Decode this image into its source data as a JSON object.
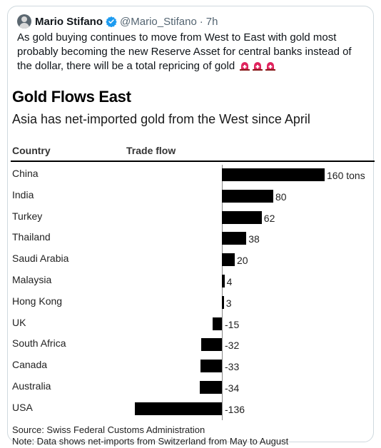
{
  "tweet": {
    "author": "Mario Stifano",
    "handle": "@Mario_Stifano",
    "separator": "·",
    "time": "7h",
    "text": "As gold buying continues to move from West to East with gold most probably becoming the new Reserve Asset for central banks instead of the dollar, there will be a total repricing of gold",
    "emoji_icons": [
      "police-siren-icon",
      "police-siren-icon",
      "police-siren-icon"
    ],
    "accent_color": "#1d9bf0"
  },
  "chart_data": {
    "type": "bar",
    "title": "Gold Flows East",
    "subtitle": "Asia has net-imported gold from the West since April",
    "columns": [
      "Country",
      "Trade flow"
    ],
    "categories": [
      "China",
      "India",
      "Turkey",
      "Thailand",
      "Saudi Arabia",
      "Malaysia",
      "Hong Kong",
      "UK",
      "South Africa",
      "Canada",
      "Australia",
      "USA"
    ],
    "values": [
      160,
      80,
      62,
      38,
      20,
      4,
      3,
      -15,
      -32,
      -33,
      -34,
      -136
    ],
    "value_labels": [
      "160 tons",
      "80",
      "62",
      "38",
      "20",
      "4",
      "3",
      "-15",
      "-32",
      "-33",
      "-34",
      "-136"
    ],
    "unit": "tons",
    "bar_color": "#000000",
    "source": "Source: Swiss Federal Customs Administration",
    "note": "Note: Data shows net-imports from Switzerland from May to August"
  }
}
